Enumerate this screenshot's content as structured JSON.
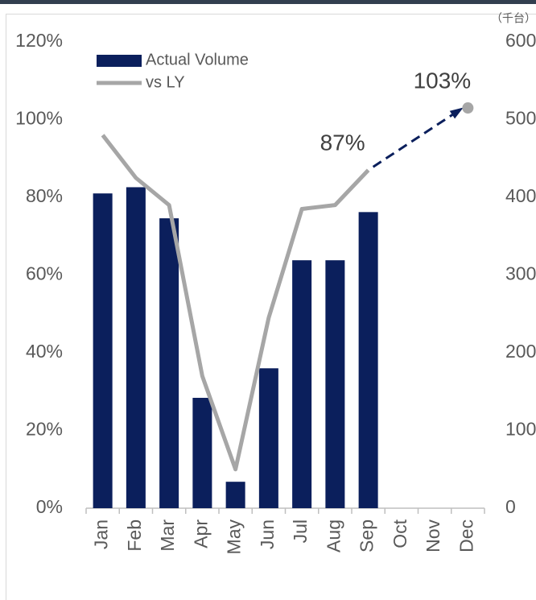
{
  "chart_data": {
    "type": "bar",
    "unit_label": "（千台）",
    "categories": [
      "Jan",
      "Feb",
      "Mar",
      "Apr",
      "May",
      "Jun",
      "Jul",
      "Aug",
      "Sep",
      "Oct",
      "Nov",
      "Dec"
    ],
    "series": [
      {
        "name": "Actual Volume",
        "type": "bar",
        "axis": "y2",
        "color": "#0b1f5c",
        "values": [
          405,
          413,
          373,
          142,
          34,
          180,
          319,
          319,
          381,
          null,
          null,
          null
        ]
      },
      {
        "name": "vs LY",
        "type": "line",
        "axis": "y",
        "color": "#a6a6a6",
        "values": [
          96,
          85,
          78,
          34,
          10,
          49,
          77,
          78,
          87,
          null,
          null,
          103
        ],
        "value_labels": [
          null,
          null,
          null,
          null,
          null,
          null,
          null,
          null,
          "87%",
          null,
          null,
          "103%"
        ]
      }
    ],
    "ylim": [
      0,
      120
    ],
    "yticks": [
      {
        "value": 0,
        "label": "0%"
      },
      {
        "value": 20,
        "label": "20%"
      },
      {
        "value": 40,
        "label": "40%"
      },
      {
        "value": 60,
        "label": "60%"
      },
      {
        "value": 80,
        "label": "80%"
      },
      {
        "value": 100,
        "label": "100%"
      },
      {
        "value": 120,
        "label": "120%"
      }
    ],
    "y2lim": [
      0,
      600
    ],
    "y2ticks": [
      0,
      100,
      200,
      300,
      400,
      500,
      600
    ],
    "grid": false,
    "legend": "top-left"
  }
}
